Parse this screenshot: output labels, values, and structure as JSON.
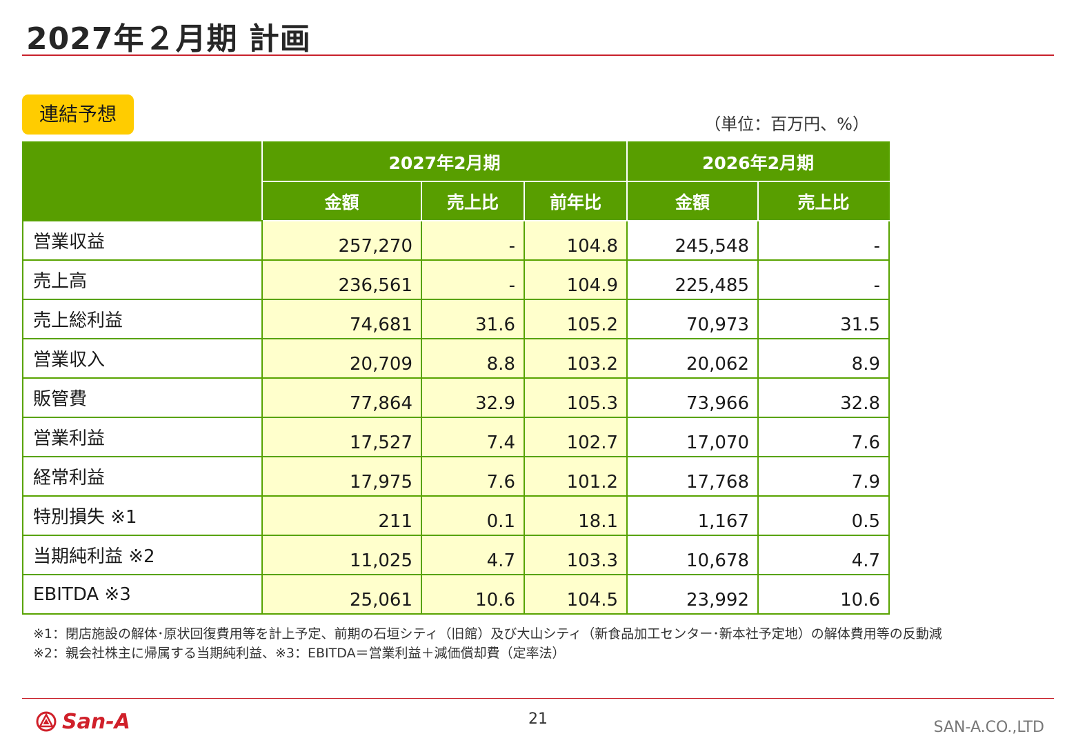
{
  "header": {
    "title": "2027年２月期 計画"
  },
  "section": {
    "badge": "連結予想",
    "unit": "（単位：百万円、%）"
  },
  "table": {
    "period_current": "2027年2月期",
    "period_previous": "2026年2月期",
    "col_amount": "金額",
    "col_sales_ratio": "売上比",
    "col_yoy": "前年比",
    "rows": [
      {
        "label": "営業収益",
        "cur_amount": "257,270",
        "cur_ratio": "-",
        "cur_yoy": "104.8",
        "prev_amount": "245,548",
        "prev_ratio": "-"
      },
      {
        "label": "売上高",
        "cur_amount": "236,561",
        "cur_ratio": "-",
        "cur_yoy": "104.9",
        "prev_amount": "225,485",
        "prev_ratio": "-"
      },
      {
        "label": "売上総利益",
        "cur_amount": "74,681",
        "cur_ratio": "31.6",
        "cur_yoy": "105.2",
        "prev_amount": "70,973",
        "prev_ratio": "31.5"
      },
      {
        "label": "営業収入",
        "cur_amount": "20,709",
        "cur_ratio": "8.8",
        "cur_yoy": "103.2",
        "prev_amount": "20,062",
        "prev_ratio": "8.9"
      },
      {
        "label": "販管費",
        "cur_amount": "77,864",
        "cur_ratio": "32.9",
        "cur_yoy": "105.3",
        "prev_amount": "73,966",
        "prev_ratio": "32.8"
      },
      {
        "label": "営業利益",
        "cur_amount": "17,527",
        "cur_ratio": "7.4",
        "cur_yoy": "102.7",
        "prev_amount": "17,070",
        "prev_ratio": "7.6"
      },
      {
        "label": "経常利益",
        "cur_amount": "17,975",
        "cur_ratio": "7.6",
        "cur_yoy": "101.2",
        "prev_amount": "17,768",
        "prev_ratio": "7.9"
      },
      {
        "label": "特別損失 ※1",
        "cur_amount": "211",
        "cur_ratio": "0.1",
        "cur_yoy": "18.1",
        "prev_amount": "1,167",
        "prev_ratio": "0.5"
      },
      {
        "label": "当期純利益 ※2",
        "cur_amount": "11,025",
        "cur_ratio": "4.7",
        "cur_yoy": "103.3",
        "prev_amount": "10,678",
        "prev_ratio": "4.7"
      },
      {
        "label": "EBITDA ※3",
        "cur_amount": "25,061",
        "cur_ratio": "10.6",
        "cur_yoy": "104.5",
        "prev_amount": "23,992",
        "prev_ratio": "10.6"
      }
    ]
  },
  "footnotes": {
    "note1": "※1：閉店施設の解体･原状回復費用等を計上予定、前期の石垣シティ（旧館）及び大山シティ（新食品加工センター･新本社予定地）の解体費用等の反動減",
    "note2": "※2：親会社株主に帰属する当期純利益、※3：EBITDA＝営業利益＋減価償却費（定率法）"
  },
  "footer": {
    "logo_text": "San-A",
    "page_number": "21",
    "company": "SAN-A.CO.,LTD"
  },
  "colors": {
    "accent_red": "#c8202a",
    "header_green": "#589e00",
    "badge_yellow": "#ffcc00",
    "current_period_fill": "#ffffcc"
  }
}
